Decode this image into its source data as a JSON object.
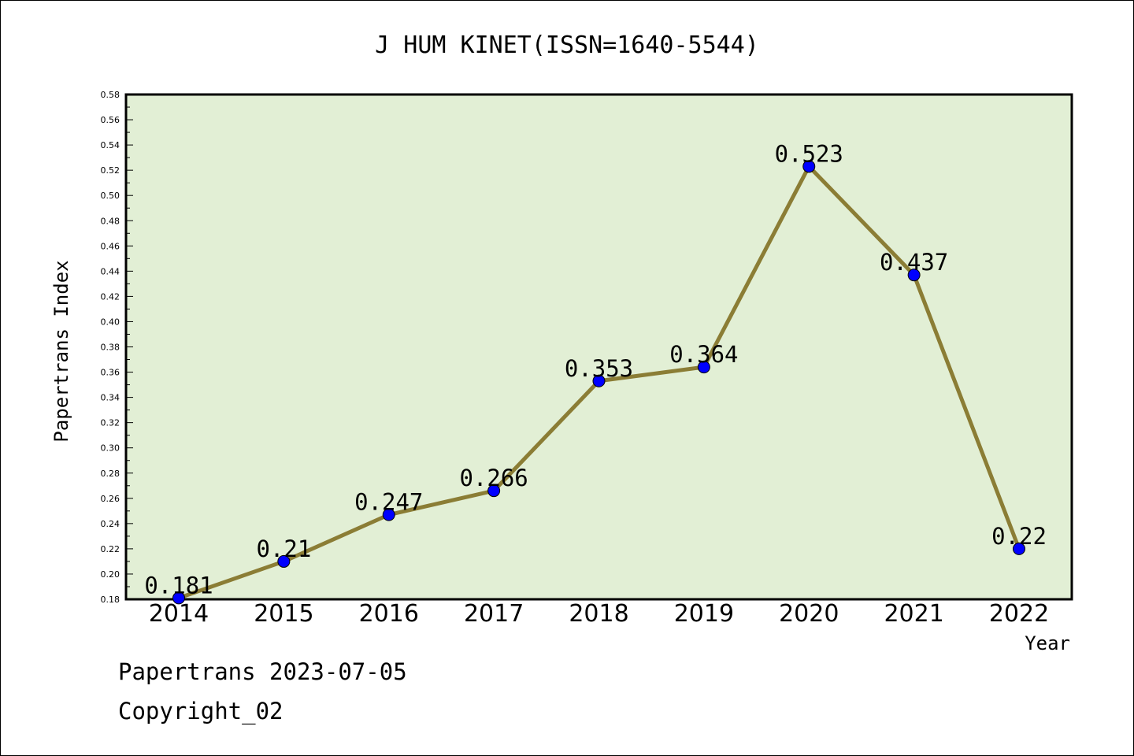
{
  "chart_data": {
    "type": "line",
    "title": "J HUM KINET(ISSN=1640-5544)",
    "xlabel": "Year",
    "ylabel": "Papertrans Index",
    "categories": [
      "2014",
      "2015",
      "2016",
      "2017",
      "2018",
      "2019",
      "2020",
      "2021",
      "2022"
    ],
    "values": [
      0.181,
      0.21,
      0.247,
      0.266,
      0.353,
      0.364,
      0.523,
      0.437,
      0.22
    ],
    "data_labels": [
      "0.181",
      "0.21",
      "0.247",
      "0.266",
      "0.353",
      "0.364",
      "0.523",
      "0.437",
      "0.22"
    ],
    "ylim": [
      0.18,
      0.58
    ],
    "y_ticks": [
      "0.18",
      "0.20",
      "0.22",
      "0.24",
      "0.26",
      "0.28",
      "0.30",
      "0.32",
      "0.34",
      "0.36",
      "0.38",
      "0.40",
      "0.42",
      "0.44",
      "0.46",
      "0.48",
      "0.50",
      "0.52",
      "0.54",
      "0.56",
      "0.58"
    ],
    "grid": false,
    "legend": "none"
  },
  "colors": {
    "plot_background": "#e2efd5",
    "line": "#8b7d35",
    "marker": "#0000ff"
  },
  "footer": {
    "line1": "Papertrans 2023-07-05",
    "line2": "Copyright_02"
  }
}
